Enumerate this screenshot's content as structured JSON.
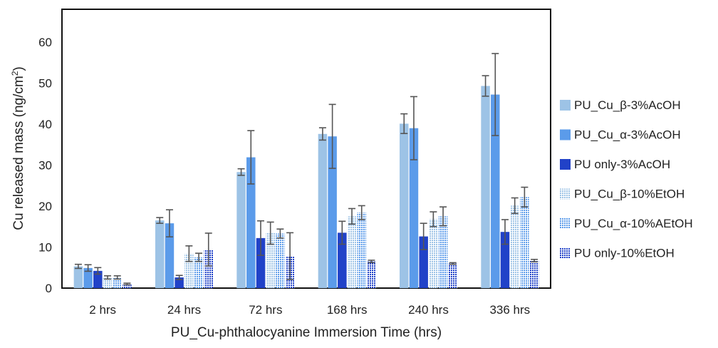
{
  "chart_data": {
    "type": "bar",
    "title": "",
    "xlabel": "PU_Cu-phthalocyanine Immersion Time (hrs)",
    "ylabel_main": "Cu released  mass (ng/cm",
    "ylabel_sup": "2",
    "ylabel_end": ")",
    "ylim": [
      0,
      65
    ],
    "yticks": [
      0,
      10,
      20,
      30,
      40,
      50,
      60
    ],
    "grid": false,
    "legend_position": "right",
    "categories": [
      "2 hrs",
      "24 hrs",
      "72 hrs",
      "168 hrs",
      "240 hrs",
      "336 hrs"
    ],
    "series": [
      {
        "name": "PU_Cu_β-3%AcOH",
        "color": "#9dc3e6",
        "pattern": "solid",
        "values": [
          5.3,
          16.5,
          28.3,
          37.6,
          40.1,
          49.3
        ],
        "errors": [
          0.5,
          0.7,
          0.8,
          1.5,
          2.4,
          2.5
        ]
      },
      {
        "name": "PU_Cu_α-3%AcOH",
        "color": "#5b9bea",
        "pattern": "solid",
        "values": [
          4.9,
          15.8,
          31.9,
          37.0,
          39.0,
          47.2
        ],
        "errors": [
          0.8,
          3.3,
          6.5,
          7.8,
          7.7,
          10.0
        ]
      },
      {
        "name": "PU only-3%AcOH",
        "color": "#2142c8",
        "pattern": "solid",
        "values": [
          4.2,
          2.6,
          12.2,
          13.5,
          12.6,
          13.7
        ],
        "errors": [
          0.8,
          0.5,
          4.2,
          2.8,
          3.2,
          3.0
        ]
      },
      {
        "name": "PU_Cu_β-10%EtOH",
        "color": "#9dc3e6",
        "pattern": "dotted",
        "values": [
          2.6,
          8.4,
          13.4,
          17.5,
          16.8,
          20.1
        ],
        "errors": [
          0.4,
          1.9,
          2.7,
          1.9,
          1.8,
          1.9
        ]
      },
      {
        "name": "PU_Cu_α-10%AEtOH",
        "color": "#5b9bea",
        "pattern": "dotted",
        "values": [
          2.6,
          7.5,
          13.3,
          18.4,
          17.5,
          22.2
        ],
        "errors": [
          0.4,
          1.0,
          1.1,
          1.7,
          2.3,
          2.4
        ]
      },
      {
        "name": "PU only-10%EtOH",
        "color": "#2142c8",
        "pattern": "dotted",
        "values": [
          1.0,
          9.4,
          7.8,
          6.5,
          6.0,
          6.7
        ],
        "errors": [
          0.2,
          4.0,
          5.7,
          0.3,
          0.2,
          0.3
        ]
      }
    ]
  }
}
